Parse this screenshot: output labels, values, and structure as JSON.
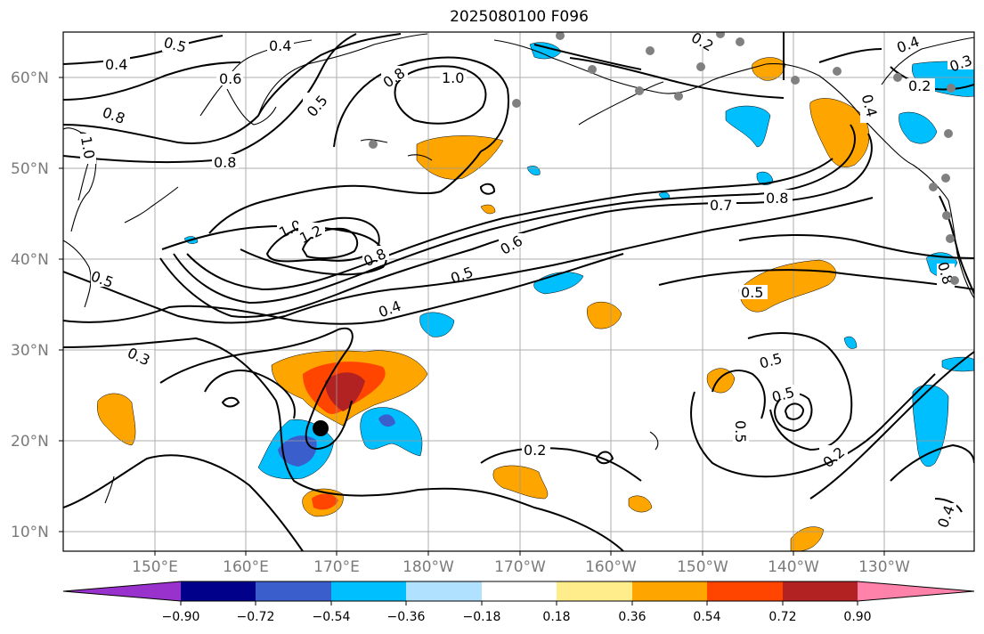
{
  "title": "2025080100 F096",
  "lat_labels": [
    "60°N",
    "50°N",
    "40°N",
    "30°N",
    "20°N",
    "10°N"
  ],
  "lon_labels": [
    "150°E",
    "160°E",
    "170°E",
    "180°W",
    "170°W",
    "160°W",
    "150°W",
    "140°W",
    "130°W"
  ],
  "contour_labels": [
    "0.5",
    "0.4",
    "0.4",
    "0.6",
    "0.5",
    "0.8",
    "1.0",
    "0.8",
    "1.0",
    "0.8",
    "1.0",
    "1.2",
    "0.8",
    "0.6",
    "0.5",
    "0.5",
    "0.7",
    "0.8",
    "0.4",
    "0.3",
    "0.5",
    "0.5",
    "0.5",
    "0.5",
    "0.2",
    "0.2",
    "0.2",
    "0.4",
    "0.2",
    "0.4",
    "0.3",
    "0.8",
    "0.4"
  ],
  "colorbar": {
    "colors": [
      "#9932cc",
      "#00008b",
      "#3a5fcd",
      "#00bfff",
      "#b0e2ff",
      "#ffffff",
      "#ffec8b",
      "#ffa500",
      "#ff4500",
      "#b22222",
      "#ff82ab"
    ],
    "ticks": [
      "−0.90",
      "−0.72",
      "−0.54",
      "−0.36",
      "−0.18",
      "0.18",
      "0.36",
      "0.54",
      "0.72",
      "0.90"
    ]
  },
  "markers": {
    "center": "black-dot",
    "stations": "gray-dots"
  }
}
